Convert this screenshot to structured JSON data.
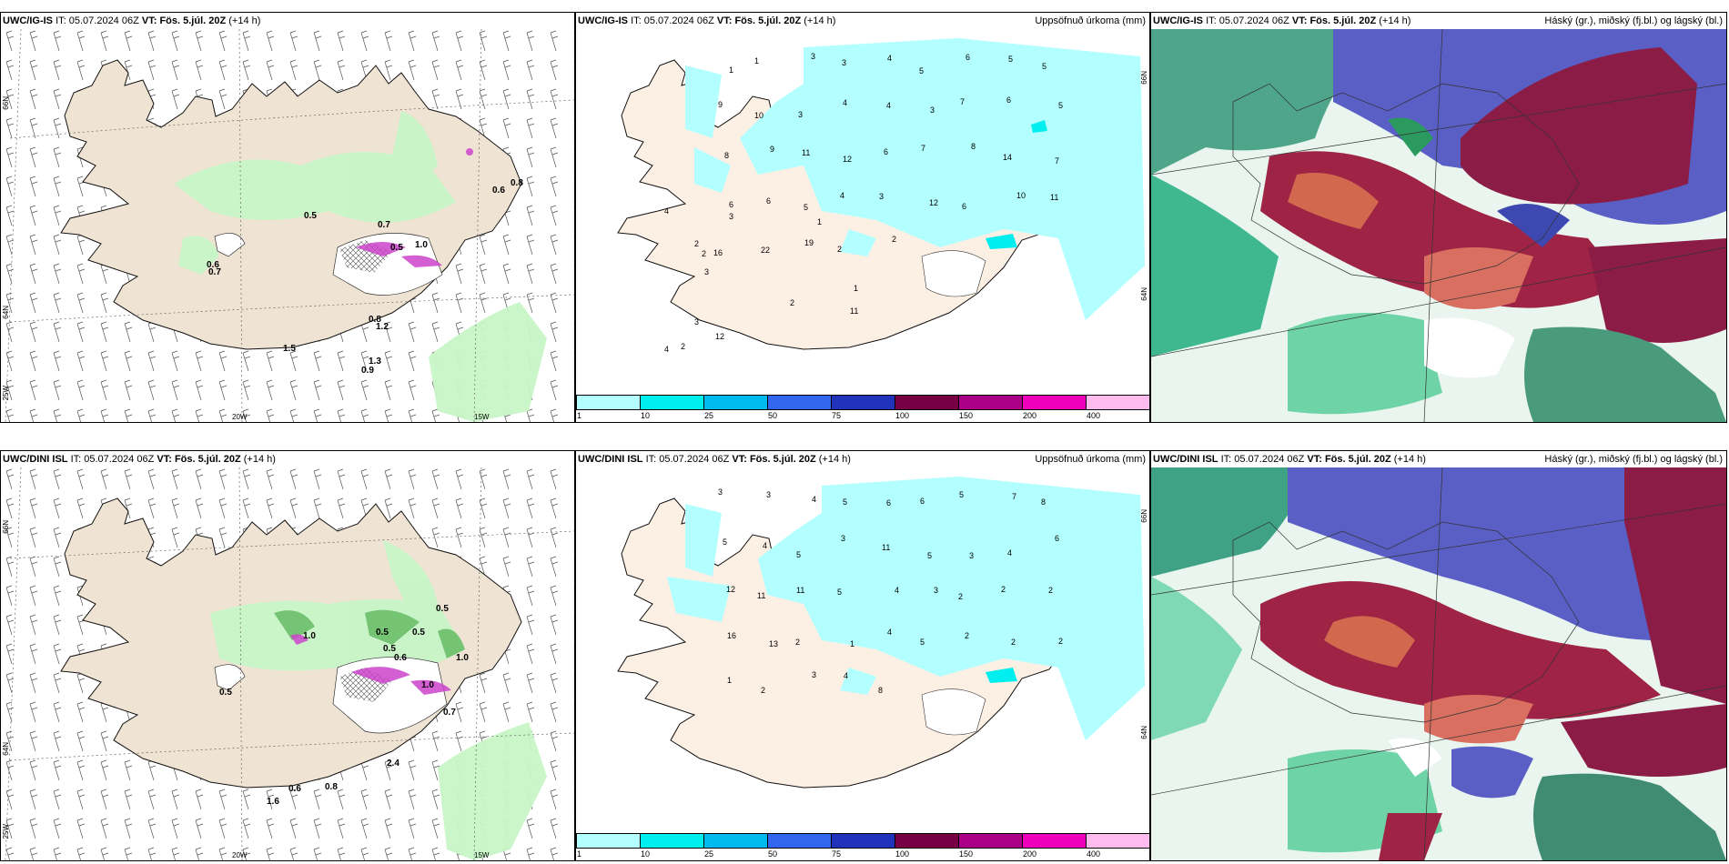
{
  "panels": {
    "tl": {
      "model": "UWC/IG-IS",
      "it_label": "IT:",
      "it": "05.07.2024 06Z",
      "vt_label": "VT:",
      "vt": "Fös. 5.júl. 20Z",
      "lead": "(+14 h)"
    },
    "tm": {
      "model": "UWC/IG-IS",
      "it_label": "IT:",
      "it": "05.07.2024 06Z",
      "vt_label": "VT:",
      "vt": "Fös. 5.júl. 20Z",
      "lead": "(+14 h)",
      "right": "Uppsöfnuð úrkoma (mm)"
    },
    "tr": {
      "model": "UWC/IG-IS",
      "it_label": "IT:",
      "it": "05.07.2024 06Z",
      "vt_label": "VT:",
      "vt": "Fös. 5.júl. 20Z",
      "lead": "(+14 h)",
      "right": "Háský (gr.), miðský (fj.bl.) og lágský (bl.)"
    },
    "bl": {
      "model": "UWC/DINI ISL",
      "it_label": "IT:",
      "it": "05.07.2024 06Z",
      "vt_label": "VT:",
      "vt": "Fös. 5.júl. 20Z",
      "lead": "(+14 h)"
    },
    "bm": {
      "model": "UWC/DINI ISL",
      "it_label": "IT:",
      "it": "05.07.2024 06Z",
      "vt_label": "VT:",
      "vt": "Fös. 5.júl. 20Z",
      "lead": "(+14 h)",
      "right": "Uppsöfnuð úrkoma (mm)"
    },
    "br": {
      "model": "UWC/DINI ISL",
      "it_label": "IT:",
      "it": "05.07.2024 06Z",
      "vt_label": "VT:",
      "vt": "Fös. 5.júl. 20Z",
      "lead": "(+14 h)",
      "right": "Háský (gr.), miðský (fj.bl.) og lágský (bl.)"
    }
  },
  "axes": {
    "lat66": "66N",
    "lat64": "64N",
    "lon20": "20W",
    "lon15": "15W",
    "lon25": "25W"
  },
  "colorbar": {
    "ticks": [
      "1",
      "10",
      "25",
      "50",
      "75",
      "100",
      "150",
      "200",
      "400"
    ],
    "colors": [
      "#b3ffff",
      "#00eeee",
      "#00bbee",
      "#3366ee",
      "#2233bb",
      "#770044",
      "#aa0088",
      "#ee00bb",
      "#ffbbee"
    ]
  },
  "cloud_labels_top": [
    "0.5",
    "0.7",
    "0.5",
    "0.6",
    "0.8",
    "0.6",
    "0.7",
    "0.8",
    "1.5",
    "1.3",
    "0.9",
    "1.0",
    "1.2"
  ],
  "cloud_labels_bottom": [
    "1.0",
    "0.5",
    "0.5",
    "0.6",
    "0.5",
    "0.5",
    "1.0",
    "0.7",
    "1.0",
    "0.6",
    "0.8",
    "1.6",
    "2.4",
    "0.5"
  ],
  "precip_top": [
    "1",
    "1",
    "3",
    "3",
    "4",
    "5",
    "6",
    "5",
    "5",
    "9",
    "10",
    "3",
    "4",
    "4",
    "3",
    "7",
    "6",
    "5",
    "8",
    "9",
    "11",
    "12",
    "6",
    "7",
    "8",
    "14",
    "7",
    "6",
    "6",
    "5",
    "4",
    "3",
    "12",
    "6",
    "10",
    "11",
    "16",
    "22",
    "19",
    "2",
    "2",
    "2",
    "3",
    "4",
    "1",
    "3",
    "2",
    "2",
    "3",
    "11",
    "12",
    "2",
    "4",
    "1"
  ],
  "precip_bottom": [
    "3",
    "3",
    "4",
    "5",
    "6",
    "6",
    "5",
    "7",
    "8",
    "5",
    "4",
    "5",
    "3",
    "11",
    "5",
    "3",
    "4",
    "6",
    "12",
    "11",
    "11",
    "5",
    "4",
    "3",
    "2",
    "2",
    "2",
    "16",
    "13",
    "2",
    "1",
    "4",
    "5",
    "2",
    "2",
    "2",
    "1",
    "2",
    "3",
    "4",
    "8"
  ]
}
